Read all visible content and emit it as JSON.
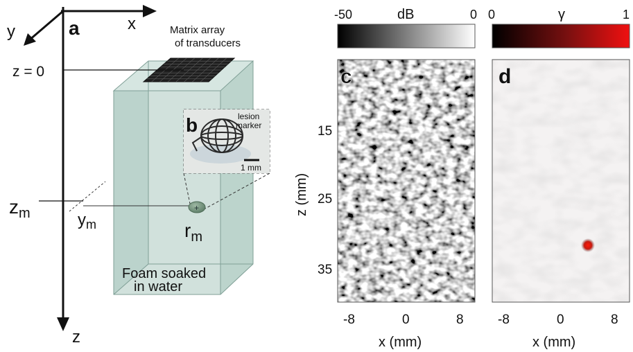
{
  "panel_a": {
    "label": "a",
    "axis_x": "x",
    "axis_y": "y",
    "axis_z": "z",
    "z0_label": "z = 0",
    "zm_label": "z",
    "zm_sub": "m",
    "ym_label": "y",
    "ym_sub": "m",
    "rm_label": "r",
    "rm_sub": "m",
    "matrix_line1": "Matrix array",
    "matrix_line2": "of transducers",
    "foam_line1": "Foam soaked",
    "foam_line2": "in water",
    "colors": {
      "foam_front": "#c9dcd6",
      "foam_side": "#6ea494",
      "foam_top": "#dbe8e4",
      "array": "#222222"
    }
  },
  "panel_b": {
    "label": "b",
    "lesion_line1": "lesion",
    "lesion_line2": "marker",
    "scale_bar": "1 mm"
  },
  "panel_c": {
    "label": "c",
    "colorbar_title": "dB",
    "colorbar_min": "-50",
    "colorbar_max": "0",
    "ylabel": "z (mm)",
    "xlabel": "x (mm)",
    "yticks": [
      "15",
      "25",
      "35"
    ],
    "xticks": [
      "-8",
      "0",
      "8"
    ],
    "colormap": "gray"
  },
  "panel_d": {
    "label": "d",
    "colorbar_title": "γ",
    "colorbar_min": "0",
    "colorbar_max": "1",
    "xlabel": "x (mm)",
    "xticks": [
      "-8",
      "0",
      "8"
    ],
    "colormap": "black-red",
    "accent": "#e01010"
  }
}
